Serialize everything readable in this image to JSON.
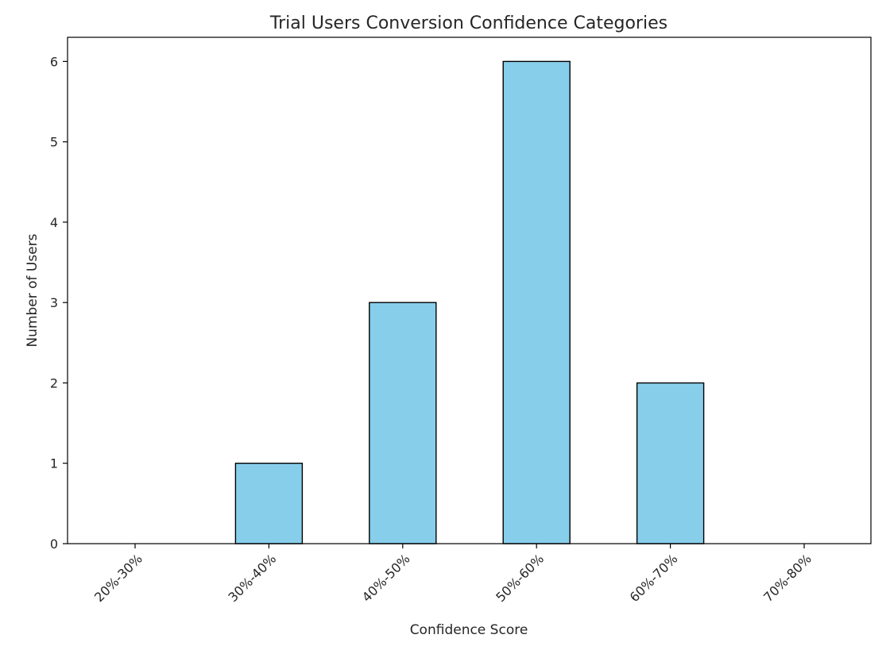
{
  "chart_data": {
    "type": "bar",
    "title": "Trial Users Conversion Confidence Categories",
    "xlabel": "Confidence Score",
    "ylabel": "Number of Users",
    "categories": [
      "20%-30%",
      "30%-40%",
      "40%-50%",
      "50%-60%",
      "60%-70%",
      "70%-80%"
    ],
    "values": [
      0,
      1,
      3,
      6,
      2,
      0
    ],
    "ylim": [
      0,
      6.3
    ],
    "yticks": [
      0,
      1,
      2,
      3,
      4,
      5,
      6
    ],
    "grid": false,
    "bar_color": "#87ceeb",
    "edge_color": "#000000"
  }
}
